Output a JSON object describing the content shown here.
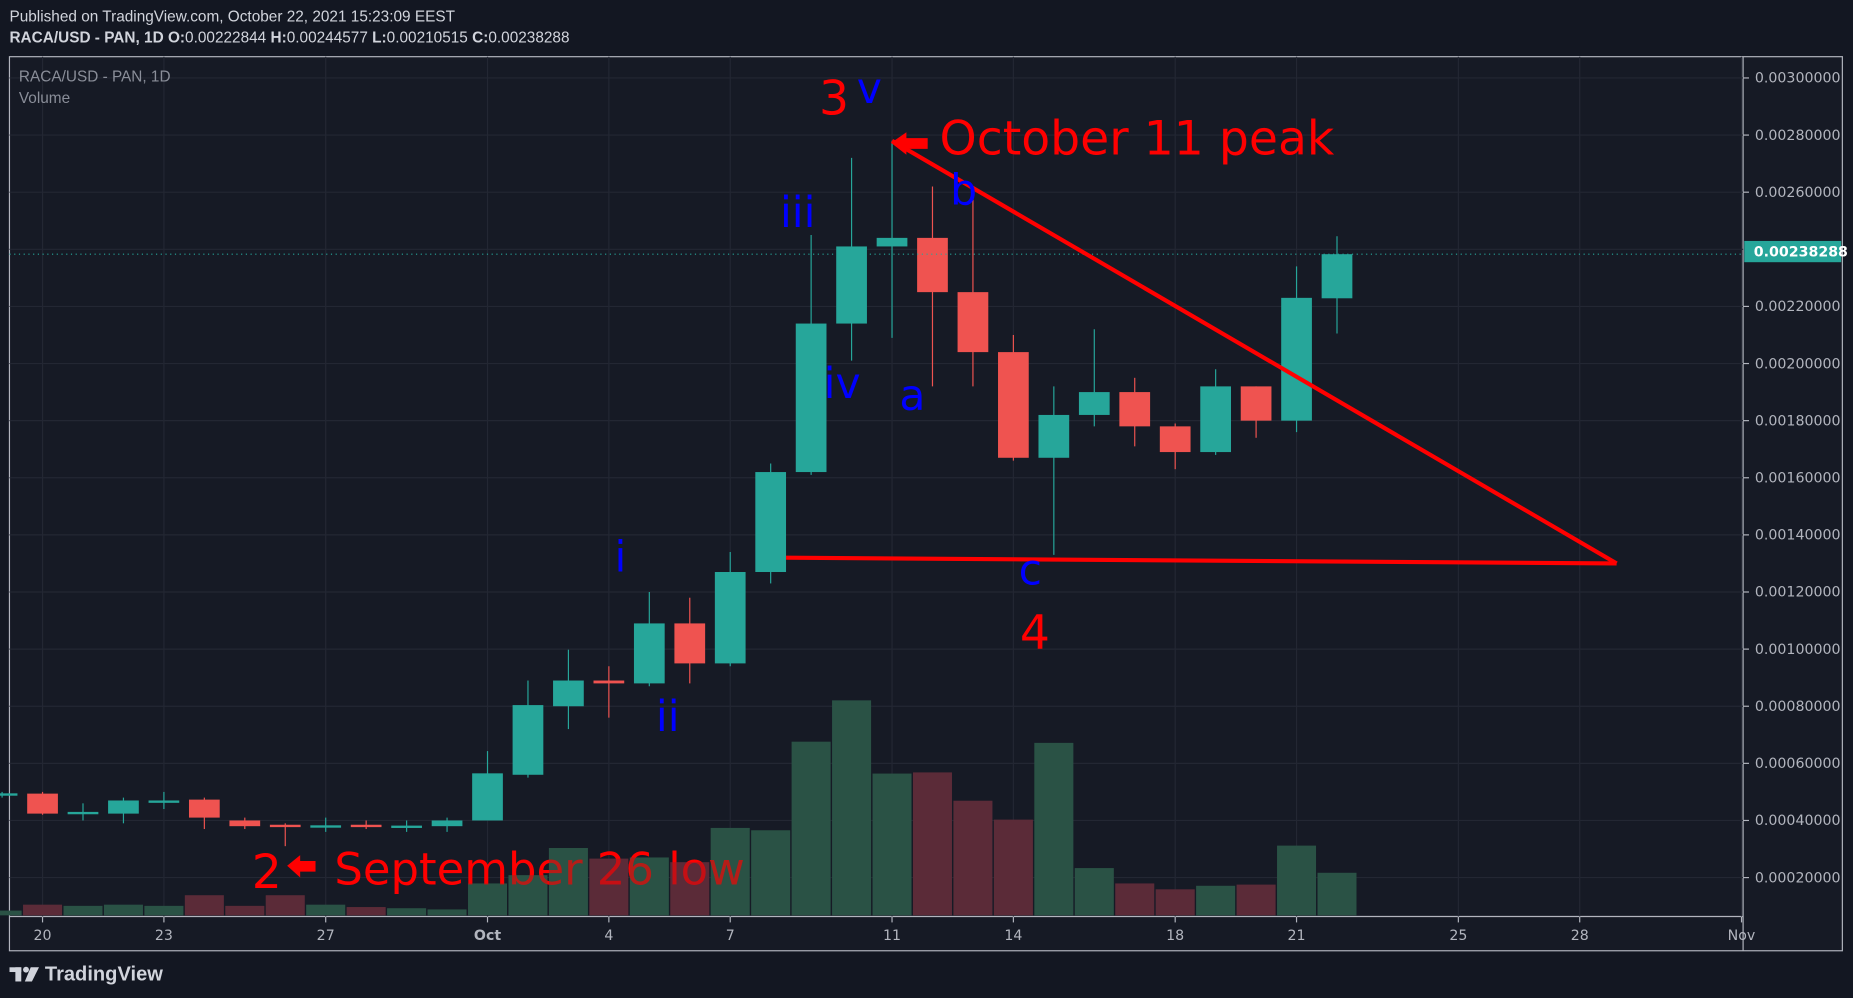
{
  "header": {
    "published": "Published on TradingView.com, October 22, 2021 15:23:09 EEST",
    "symbol": "RACA/USD - PAN, 1D",
    "o_label": "O:",
    "o": "0.00222844",
    "h_label": "H:",
    "h": "0.00244577",
    "l_label": "L:",
    "l": "0.00210515",
    "c_label": "C:",
    "c": "0.00238288"
  },
  "legend": {
    "symbol": "RACA/USD - PAN, 1D",
    "volume": "Volume"
  },
  "branding": "TradingView",
  "colors": {
    "up": "#26a69a",
    "down": "#ef5350",
    "vol_up": "#2a5246",
    "vol_down": "#5b2b38",
    "annotation_red": "#ff0000",
    "annotation_blue": "#0000ff"
  },
  "annotations": {
    "wave3": "3",
    "wave_v": "v",
    "peak": "October 11 peak",
    "b": "b",
    "iii": "iii",
    "iv": "iv",
    "a": "a",
    "c": "c",
    "wave4": "4",
    "i": "i",
    "ii": "ii",
    "wave2": "2",
    "low": "September 26 low"
  },
  "chart_data": {
    "type": "candlestick",
    "title": "RACA/USD - PAN, 1D",
    "ylim": [
      0.0,
      0.003
    ],
    "last_price": "0.00238288",
    "y_ticks": [
      "0.00300000",
      "0.00280000",
      "0.00260000",
      "0.00220000",
      "0.00200000",
      "0.00180000",
      "0.00160000",
      "0.00140000",
      "0.00120000",
      "0.00100000",
      "0.00080000",
      "0.00060000",
      "0.00040000",
      "0.00020000"
    ],
    "y_tick_values": [
      0.003,
      0.0028,
      0.0026,
      0.0022,
      0.002,
      0.0018,
      0.0016,
      0.0014,
      0.0012,
      0.001,
      0.0008,
      0.0006,
      0.0004,
      0.0002
    ],
    "x_ticks": [
      {
        "label": "20",
        "day": 1
      },
      {
        "label": "23",
        "day": 4
      },
      {
        "label": "27",
        "day": 8
      },
      {
        "label": "Oct",
        "day": 12
      },
      {
        "label": "4",
        "day": 15
      },
      {
        "label": "7",
        "day": 18
      },
      {
        "label": "11",
        "day": 22
      },
      {
        "label": "14",
        "day": 25
      },
      {
        "label": "18",
        "day": 29
      },
      {
        "label": "21",
        "day": 32
      },
      {
        "label": "25",
        "day": 36
      },
      {
        "label": "28",
        "day": 39
      },
      {
        "label": "Nov",
        "day": 43
      }
    ],
    "candles": [
      {
        "date": "2021-09-19",
        "o": 0.00049,
        "h": 0.0005,
        "l": 0.00048,
        "c": 0.000495,
        "vol": 4
      },
      {
        "date": "2021-09-20",
        "o": 0.000494,
        "h": 0.0005,
        "l": 0.00042,
        "c": 0.000424,
        "vol": 9
      },
      {
        "date": "2021-09-21",
        "o": 0.000425,
        "h": 0.00046,
        "l": 0.0004,
        "c": 0.00043,
        "vol": 8
      },
      {
        "date": "2021-09-22",
        "o": 0.000424,
        "h": 0.00048,
        "l": 0.00039,
        "c": 0.00047,
        "vol": 9
      },
      {
        "date": "2021-09-23",
        "o": 0.000465,
        "h": 0.0005,
        "l": 0.00044,
        "c": 0.00047,
        "vol": 8
      },
      {
        "date": "2021-09-24",
        "o": 0.000473,
        "h": 0.00048,
        "l": 0.00037,
        "c": 0.00041,
        "vol": 17
      },
      {
        "date": "2021-09-25",
        "o": 0.0004,
        "h": 0.00041,
        "l": 0.00037,
        "c": 0.00038,
        "vol": 8
      },
      {
        "date": "2021-09-26",
        "o": 0.000385,
        "h": 0.00039,
        "l": 0.00031,
        "c": 0.00038,
        "vol": 17
      },
      {
        "date": "2021-09-27",
        "o": 0.00038,
        "h": 0.00041,
        "l": 0.00036,
        "c": 0.000383,
        "vol": 9
      },
      {
        "date": "2021-09-28",
        "o": 0.000385,
        "h": 0.0004,
        "l": 0.00037,
        "c": 0.00038,
        "vol": 7
      },
      {
        "date": "2021-09-29",
        "o": 0.000378,
        "h": 0.0004,
        "l": 0.00036,
        "c": 0.000382,
        "vol": 6
      },
      {
        "date": "2021-09-30",
        "o": 0.00038,
        "h": 0.00041,
        "l": 0.00036,
        "c": 0.0004,
        "vol": 5
      },
      {
        "date": "2021-10-01",
        "o": 0.0004,
        "h": 0.000643,
        "l": 0.0004,
        "c": 0.000565,
        "vol": 27
      },
      {
        "date": "2021-10-02",
        "o": 0.00056,
        "h": 0.00089,
        "l": 0.00055,
        "c": 0.000804,
        "vol": 34
      },
      {
        "date": "2021-10-03",
        "o": 0.0008,
        "h": 0.000998,
        "l": 0.00072,
        "c": 0.00089,
        "vol": 57
      },
      {
        "date": "2021-10-04",
        "o": 0.00089,
        "h": 0.00094,
        "l": 0.00076,
        "c": 0.00088,
        "vol": 48
      },
      {
        "date": "2021-10-05",
        "o": 0.00088,
        "h": 0.0012,
        "l": 0.00087,
        "c": 0.00109,
        "vol": 49
      },
      {
        "date": "2021-10-06",
        "o": 0.00109,
        "h": 0.00118,
        "l": 0.00088,
        "c": 0.00095,
        "vol": 45
      },
      {
        "date": "2021-10-07",
        "o": 0.00095,
        "h": 0.00134,
        "l": 0.00094,
        "c": 0.00127,
        "vol": 74
      },
      {
        "date": "2021-10-08",
        "o": 0.00127,
        "h": 0.00165,
        "l": 0.00123,
        "c": 0.00162,
        "vol": 72
      },
      {
        "date": "2021-10-09",
        "o": 0.00162,
        "h": 0.00245,
        "l": 0.00161,
        "c": 0.00214,
        "vol": 147
      },
      {
        "date": "2021-10-10",
        "o": 0.00214,
        "h": 0.00272,
        "l": 0.00201,
        "c": 0.00241,
        "vol": 182
      },
      {
        "date": "2021-10-11",
        "o": 0.00241,
        "h": 0.00278,
        "l": 0.00209,
        "c": 0.00244,
        "vol": 120
      },
      {
        "date": "2021-10-12",
        "o": 0.00244,
        "h": 0.00262,
        "l": 0.00192,
        "c": 0.00225,
        "vol": 121
      },
      {
        "date": "2021-10-13",
        "o": 0.00225,
        "h": 0.00261,
        "l": 0.00192,
        "c": 0.00204,
        "vol": 97
      },
      {
        "date": "2021-10-14",
        "o": 0.00204,
        "h": 0.0021,
        "l": 0.00166,
        "c": 0.00167,
        "vol": 81
      },
      {
        "date": "2021-10-15",
        "o": 0.00167,
        "h": 0.00192,
        "l": 0.00133,
        "c": 0.00182,
        "vol": 146
      },
      {
        "date": "2021-10-16",
        "o": 0.00182,
        "h": 0.00212,
        "l": 0.00178,
        "c": 0.0019,
        "vol": 40
      },
      {
        "date": "2021-10-17",
        "o": 0.0019,
        "h": 0.00195,
        "l": 0.00171,
        "c": 0.00178,
        "vol": 27
      },
      {
        "date": "2021-10-18",
        "o": 0.00178,
        "h": 0.00179,
        "l": 0.00163,
        "c": 0.00169,
        "vol": 22
      },
      {
        "date": "2021-10-19",
        "o": 0.00169,
        "h": 0.00198,
        "l": 0.00168,
        "c": 0.00192,
        "vol": 25
      },
      {
        "date": "2021-10-20",
        "o": 0.00192,
        "h": 0.00192,
        "l": 0.00174,
        "c": 0.0018,
        "vol": 26
      },
      {
        "date": "2021-10-21",
        "o": 0.0018,
        "h": 0.00234,
        "l": 0.00176,
        "c": 0.00223,
        "vol": 59
      },
      {
        "date": "2021-10-22",
        "o": 0.00222844,
        "h": 0.00244577,
        "l": 0.00210515,
        "c": 0.00238288,
        "vol": 36
      }
    ],
    "volume_units": "relative",
    "trendlines": [
      {
        "from": {
          "date": "2021-10-11",
          "price": 0.00278
        },
        "to": {
          "date": "2021-10-29",
          "price": 0.0013
        }
      },
      {
        "from": {
          "date": "2021-10-08",
          "price": 0.00132
        },
        "to": {
          "date": "2021-10-29",
          "price": 0.0013
        }
      }
    ]
  }
}
